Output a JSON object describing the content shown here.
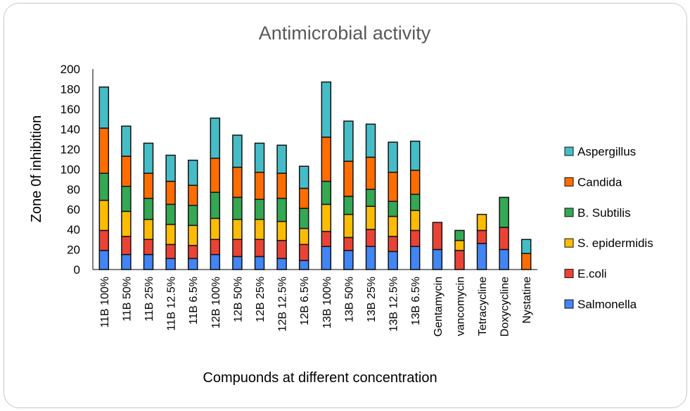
{
  "chart_data": {
    "type": "bar",
    "stacked": true,
    "title": "Antimicrobial activity",
    "xlabel": "Compuonds at different concentration",
    "ylabel": "Zone 0f inhibition",
    "ylim": [
      0,
      200
    ],
    "yticks": [
      0,
      20,
      40,
      60,
      80,
      100,
      120,
      140,
      160,
      180,
      200
    ],
    "grid": false,
    "legend_position": "right",
    "categories": [
      "11B 100%",
      "11B 50%",
      "11B 25%",
      "11B 12.5%",
      "11B 6.5%",
      "12B 100%",
      "12B 50%",
      "12B 25%",
      "12B 12.5%",
      "12B 6.5%",
      "13B 100%",
      "13B 50%",
      "13B 25%",
      "13B 12.5%",
      "13B 6.5%",
      "Gentamycin",
      "vancomycin",
      "Tetracycline",
      "Doxycycline",
      "Nystatine"
    ],
    "series": [
      {
        "name": "Salmonella",
        "color": "#4285F4",
        "values": [
          19,
          15,
          15,
          11,
          11,
          15,
          13,
          13,
          11,
          9,
          23,
          19,
          23,
          18,
          23,
          20,
          0,
          26,
          20,
          0
        ]
      },
      {
        "name": "E.coli",
        "color": "#EA4335",
        "values": [
          20,
          18,
          15,
          14,
          13,
          15,
          17,
          17,
          18,
          16,
          15,
          13,
          17,
          15,
          16,
          27,
          19,
          13,
          22,
          0
        ]
      },
      {
        "name": "S. epidermidis",
        "color": "#FBBC04",
        "values": [
          30,
          25,
          20,
          20,
          20,
          21,
          20,
          20,
          19,
          16,
          27,
          23,
          23,
          20,
          20,
          0,
          10,
          16,
          0,
          0
        ]
      },
      {
        "name": "B. Subtilis",
        "color": "#34A853",
        "values": [
          27,
          25,
          21,
          20,
          20,
          26,
          22,
          20,
          23,
          20,
          23,
          18,
          17,
          15,
          16,
          0,
          10,
          0,
          30,
          0
        ]
      },
      {
        "name": "Candida",
        "color": "#FF6D01",
        "values": [
          45,
          30,
          25,
          23,
          20,
          34,
          30,
          27,
          25,
          20,
          44,
          35,
          32,
          29,
          24,
          0,
          0,
          0,
          0,
          16
        ]
      },
      {
        "name": "Aspergillus",
        "color": "#46BDC6",
        "values": [
          41,
          30,
          30,
          26,
          25,
          40,
          32,
          29,
          28,
          22,
          55,
          40,
          33,
          30,
          29,
          0,
          0,
          0,
          0,
          14
        ]
      }
    ]
  }
}
